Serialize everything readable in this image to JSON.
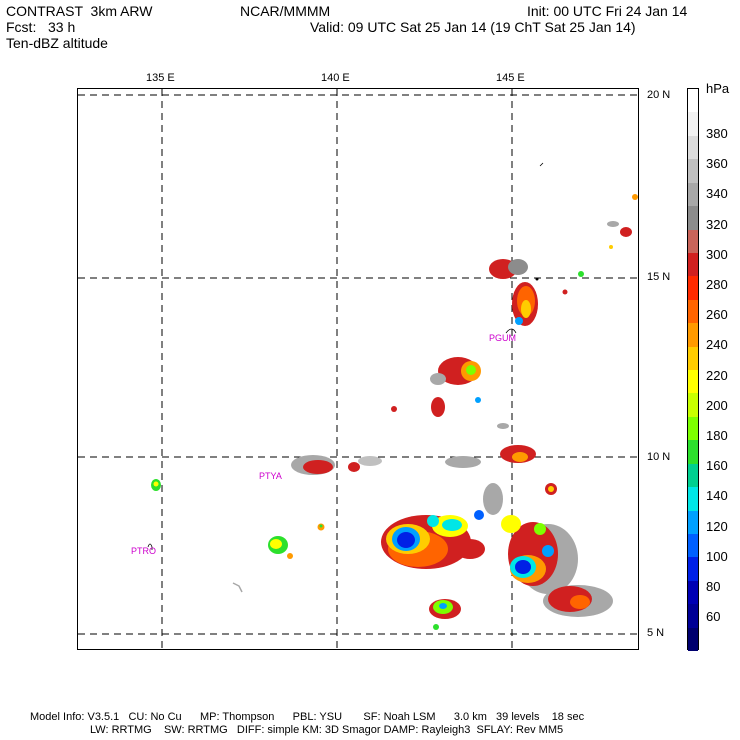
{
  "header": {
    "model": "CONTRAST  3km ARW",
    "center": "NCAR/MMMM",
    "init": "Init: 00 UTC Fri 24 Jan 14",
    "fcst": "Fcst:   33 h",
    "valid": "Valid: 09 UTC Sat 25 Jan 14 (19 ChT Sat 25 Jan 14)",
    "field": "Ten-dBZ altitude"
  },
  "axes": {
    "lon_labels": [
      "135 E",
      "140 E",
      "145 E"
    ],
    "lat_labels": [
      "20 N",
      "15 N",
      "10 N",
      "5 N"
    ]
  },
  "stations": [
    {
      "id": "PGUM",
      "label": "PGUM"
    },
    {
      "id": "PTYA",
      "label": "PTYA"
    },
    {
      "id": "PTRO",
      "label": "PTRO"
    }
  ],
  "colorbar": {
    "unit": "hPa",
    "labels": [
      "380",
      "360",
      "340",
      "320",
      "300",
      "280",
      "260",
      "240",
      "220",
      "200",
      "180",
      "160",
      "140",
      "120",
      "100",
      "80",
      "60"
    ],
    "colors": [
      "#ffffff",
      "#f2f2f2",
      "#dcdcdc",
      "#c0c0c0",
      "#a8a8a8",
      "#8c8c8c",
      "#c8645a",
      "#d02020",
      "#ff2a00",
      "#ff6400",
      "#ff9a00",
      "#ffcc00",
      "#ffff00",
      "#c8ff00",
      "#7dff00",
      "#2ce02c",
      "#00d090",
      "#00e6e6",
      "#00a0ff",
      "#0060ff",
      "#0020e6",
      "#0000b4",
      "#000096",
      "#00006e"
    ]
  },
  "footer": {
    "line1": "Model Info: V3.5.1   CU: No Cu      MP: Thompson      PBL: YSU       SF: Noah LSM      3.0 km   39 levels    18 sec",
    "line2": "LW: RRTMG    SW: RRTMG   DIFF: simple KM: 3D Smagor DAMP: Rayleigh3  SFLAY: Rev MM5"
  }
}
